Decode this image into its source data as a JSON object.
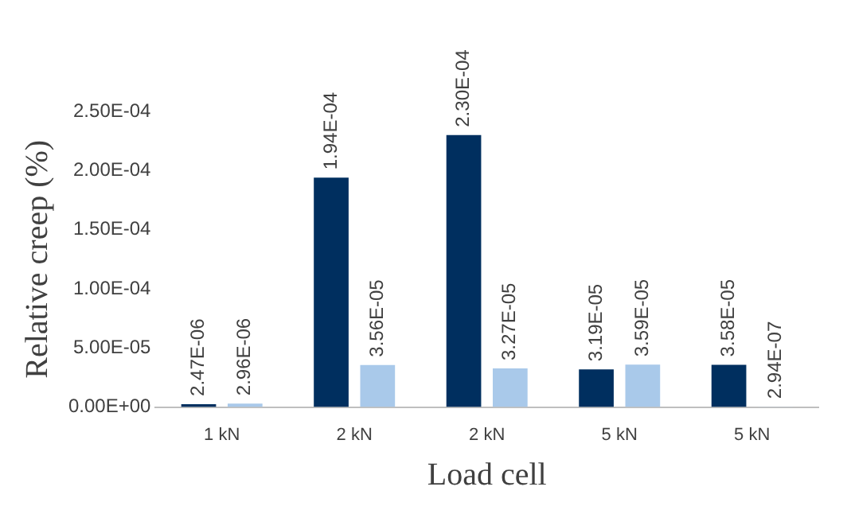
{
  "chart_data": {
    "type": "bar",
    "xlabel": "Load cell",
    "ylabel": "Relative creep (%)",
    "categories": [
      "1 kN",
      "2 kN",
      "2 kN",
      "5 kN",
      "5 kN"
    ],
    "series": [
      {
        "color": "#002f5f",
        "values": [
          2.47e-06,
          0.000194,
          0.00023,
          3.19e-05,
          3.58e-05
        ],
        "value_labels": [
          "2.47E-06",
          "1.94E-04",
          "2.30E-04",
          "3.19E-05",
          "3.58E-05"
        ]
      },
      {
        "color": "#a9c9ea",
        "values": [
          2.96e-06,
          3.56e-05,
          3.27e-05,
          3.59e-05,
          2.94e-07
        ],
        "value_labels": [
          "2.96E-06",
          "3.56E-05",
          "3.27E-05",
          "3.59E-05",
          "2.94E-07"
        ]
      }
    ],
    "ylim": [
      0,
      0.00025
    ],
    "yticks": [
      {
        "value": 0,
        "label": "0.00E+00"
      },
      {
        "value": 5e-05,
        "label": "5.00E-05"
      },
      {
        "value": 0.0001,
        "label": "1.00E-04"
      },
      {
        "value": 0.00015,
        "label": "1.50E-04"
      },
      {
        "value": 0.0002,
        "label": "2.00E-04"
      },
      {
        "value": 0.00025,
        "label": "2.50E-04"
      }
    ],
    "grid": false,
    "legend": false
  }
}
